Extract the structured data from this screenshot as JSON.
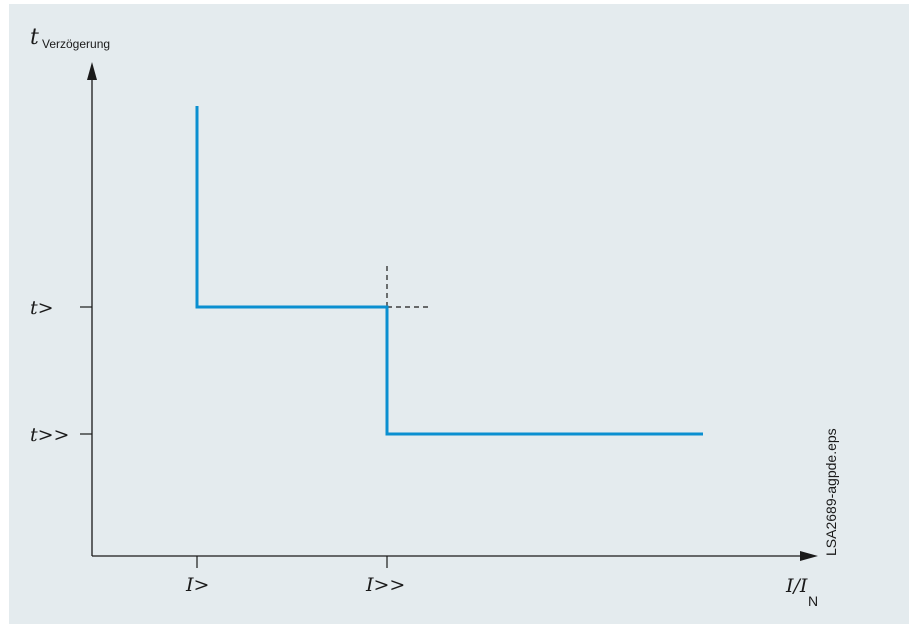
{
  "diagram": {
    "y_axis_label": "t",
    "y_axis_subscript": "Verzögerung",
    "x_axis_label": "I/I",
    "x_axis_subscript": "N",
    "y_ticks": [
      "t>",
      "t>>"
    ],
    "x_ticks": [
      "I>",
      "I>>"
    ],
    "file_label": "LSA2689-agpde.eps",
    "curve_color": "#0a8fd0",
    "background_color": "#e4ebee"
  }
}
